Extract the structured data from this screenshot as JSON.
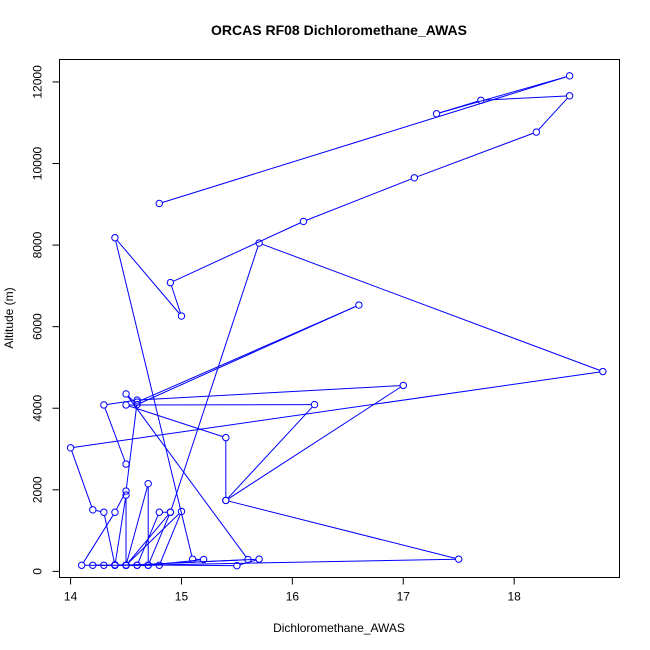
{
  "chart_data": {
    "type": "scatter",
    "title": "ORCAS RF08 Dichloromethane_AWAS",
    "xlabel": "Dichloromethane_AWAS",
    "ylabel": "Altitude (m)",
    "xlim": [
      13.9,
      18.95
    ],
    "ylim": [
      -150,
      12550
    ],
    "xticks": [
      14,
      15,
      16,
      17,
      18
    ],
    "yticks": [
      0,
      2000,
      4000,
      6000,
      8000,
      10000,
      12000
    ],
    "color": "#0000ff",
    "grid": false,
    "legend": "none",
    "series": [
      {
        "x": [
          14.8,
          18.5,
          17.3,
          17.7,
          18.5,
          18.2,
          17.1,
          16.1,
          14.9,
          15.0,
          14.4,
          15.1,
          15.2,
          14.7,
          14.5,
          14.9,
          15.7,
          18.8,
          14.0,
          14.2,
          14.3,
          14.4,
          14.5,
          14.5,
          14.4,
          14.3,
          14.1,
          14.4,
          14.5,
          14.6,
          16.6,
          14.6,
          14.5,
          15.6,
          14.5,
          14.7,
          14.7,
          14.9,
          14.8,
          14.6,
          14.5,
          14.4,
          15.5,
          15.7,
          14.5,
          14.8,
          15.0,
          14.5,
          14.4,
          14.2,
          14.6,
          17.5,
          15.4,
          16.2,
          14.5,
          15.4,
          15.4,
          17.0,
          14.6,
          14.3,
          14.5
        ],
        "y": [
          9020,
          12150,
          11220,
          11550,
          11660,
          10770,
          9650,
          8580,
          7080,
          6260,
          8180,
          300,
          290,
          150,
          150,
          1450,
          8050,
          4900,
          3030,
          1510,
          1450,
          150,
          150,
          1870,
          150,
          150,
          150,
          1450,
          1970,
          4150,
          6530,
          4090,
          4350,
          290,
          150,
          2150,
          150,
          1450,
          1450,
          150,
          150,
          160,
          140,
          300,
          150,
          150,
          1470,
          150,
          150,
          150,
          150,
          300,
          1740,
          4090,
          4080,
          3280,
          1740,
          4560,
          4200,
          4080,
          2630
        ]
      }
    ]
  }
}
